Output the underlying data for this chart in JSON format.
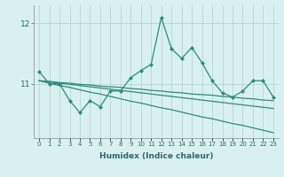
{
  "xlabel": "Humidex (Indice chaleur)",
  "x": [
    0,
    1,
    2,
    3,
    4,
    5,
    6,
    7,
    8,
    9,
    10,
    11,
    12,
    13,
    14,
    15,
    16,
    17,
    18,
    19,
    20,
    21,
    22,
    23
  ],
  "line_spiky": [
    11.2,
    11.0,
    11.0,
    10.72,
    10.52,
    10.72,
    10.62,
    10.88,
    10.88,
    11.1,
    11.22,
    11.32,
    12.1,
    11.58,
    11.42,
    11.6,
    11.35,
    11.05,
    10.85,
    10.78,
    10.88,
    11.05,
    11.05,
    10.78
  ],
  "line_reg1": [
    11.05,
    11.04,
    11.02,
    11.01,
    10.99,
    10.98,
    10.96,
    10.95,
    10.94,
    10.92,
    10.91,
    10.89,
    10.88,
    10.86,
    10.85,
    10.83,
    10.82,
    10.81,
    10.79,
    10.78,
    10.76,
    10.75,
    10.73,
    10.72
  ],
  "line_reg2": [
    11.05,
    11.03,
    11.01,
    10.99,
    10.97,
    10.95,
    10.93,
    10.91,
    10.89,
    10.87,
    10.85,
    10.83,
    10.81,
    10.79,
    10.77,
    10.75,
    10.73,
    10.71,
    10.69,
    10.67,
    10.65,
    10.63,
    10.61,
    10.59
  ],
  "line_reg3": [
    11.05,
    11.01,
    10.97,
    10.94,
    10.9,
    10.86,
    10.83,
    10.79,
    10.75,
    10.71,
    10.68,
    10.64,
    10.6,
    10.57,
    10.53,
    10.49,
    10.45,
    10.42,
    10.38,
    10.34,
    10.31,
    10.27,
    10.23,
    10.19
  ],
  "ylim": [
    10.1,
    12.3
  ],
  "yticks": [
    11,
    12
  ],
  "line_color": "#2e8b7a",
  "bg_color": "#d8f0f0",
  "grid_color": "#b0cfcf",
  "tick_label_color": "#336666",
  "xlabel_color": "#336666"
}
